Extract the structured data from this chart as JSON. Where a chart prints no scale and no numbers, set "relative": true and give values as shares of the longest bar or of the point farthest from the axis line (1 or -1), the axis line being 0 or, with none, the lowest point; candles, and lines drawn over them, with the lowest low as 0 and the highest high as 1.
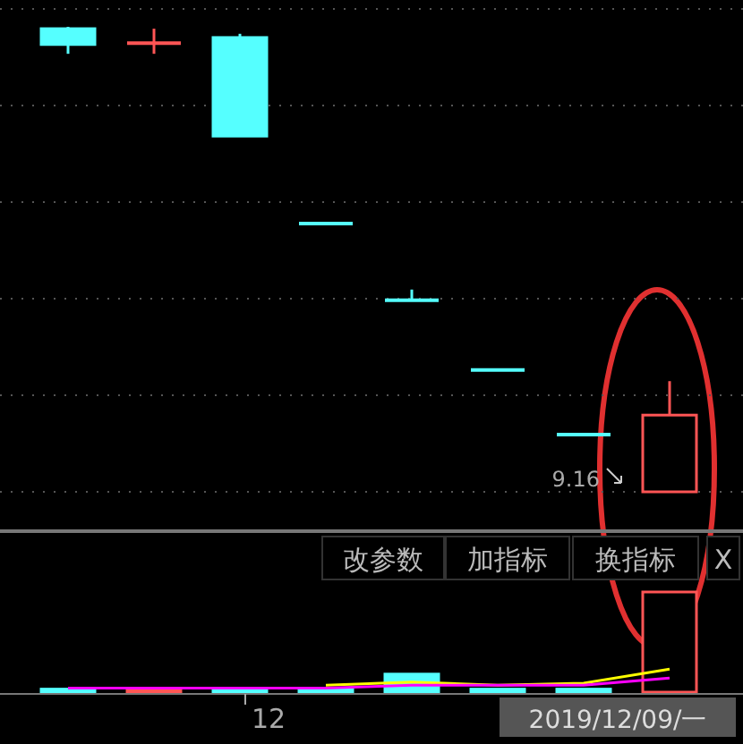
{
  "chart_data": [
    {
      "type": "candlestick",
      "relative": true,
      "grid": true,
      "categories": [
        null,
        null,
        null,
        null,
        null,
        null,
        null,
        null
      ],
      "ohlc": [
        [
          0.996,
          1,
          0.942,
          0.962
        ],
        [
          0.965,
          0.996,
          0.942,
          0.965
        ],
        [
          0.977,
          0.985,
          0.765,
          0.765
        ],
        [
          0.577,
          0.577,
          0.577,
          0.577
        ],
        [
          0.412,
          0.435,
          0.412,
          0.412
        ],
        [
          0.262,
          0.262,
          0.262,
          0.262
        ],
        [
          0.123,
          0.123,
          0.123,
          0.123
        ],
        [
          0,
          0.238,
          0,
          0.165
        ]
      ],
      "colors": [
        "#55ffff",
        "#ff5555",
        "#55ffff",
        "#55ffff",
        "#55ffff",
        "#55ffff",
        "#55ffff",
        "#ff5555"
      ],
      "annotations": [
        "9.16"
      ]
    },
    {
      "type": "line",
      "relative": true,
      "grid": false,
      "categories": [
        null,
        null,
        null,
        null,
        null,
        null,
        null,
        null
      ],
      "series": [
        {
          "type": "bar",
          "values": [
            0.03,
            0.02,
            0.03,
            0.03,
            0.18,
            0.03,
            0.03,
            1
          ],
          "colors": [
            "#55ffff",
            "#ff5555",
            "#55ffff",
            "#55ffff",
            "#55ffff",
            "#55ffff",
            "#55ffff",
            "#ff5555"
          ]
        },
        {
          "type": "line",
          "color": "#ffff00",
          "values": [
            null,
            null,
            null,
            0.07,
            0.1,
            0.07,
            0.09,
            0.23
          ]
        },
        {
          "type": "line",
          "color": "#ff00ff",
          "values": [
            0.04,
            0.04,
            0.04,
            0.04,
            0.07,
            0.07,
            0.07,
            0.14
          ]
        }
      ],
      "annotations": [
        "12",
        "改参数",
        "加指标",
        "换指标",
        "X",
        "2019/12/09/一"
      ]
    }
  ]
}
